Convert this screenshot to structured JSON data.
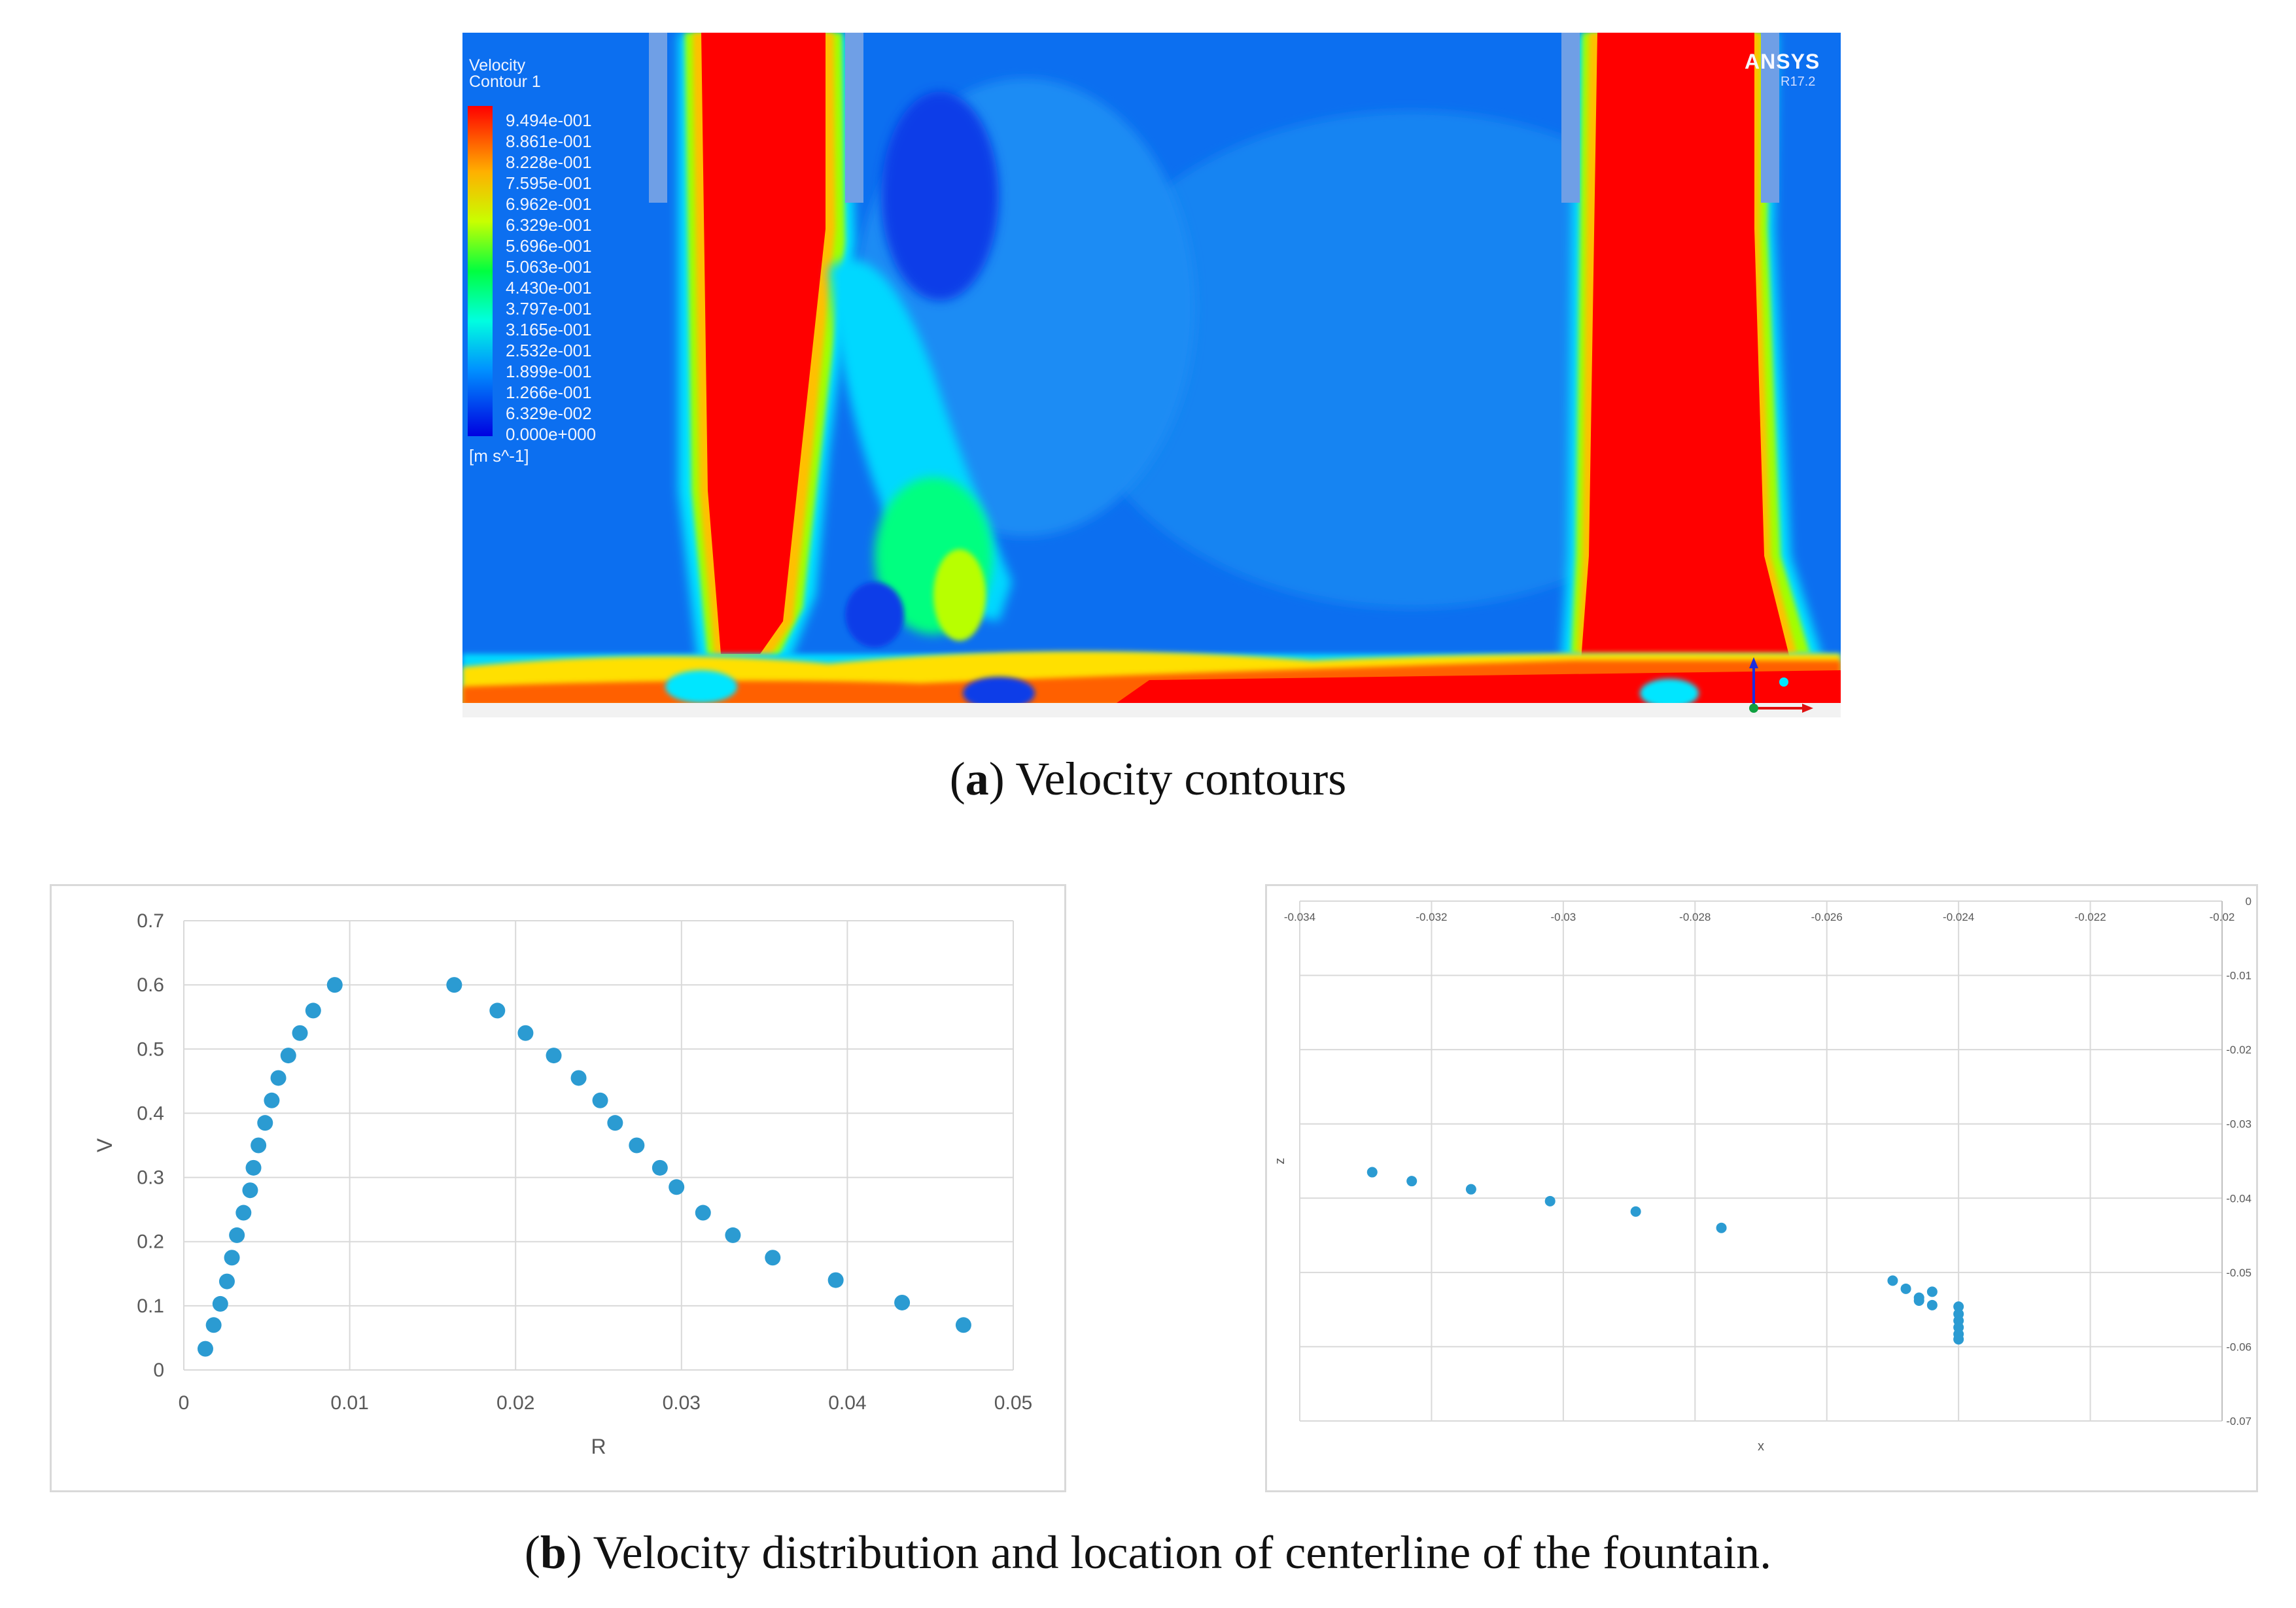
{
  "figure": {
    "caption_a": {
      "letter": "a",
      "text": "Velocity contours"
    },
    "caption_b": {
      "letter": "b",
      "text": "Velocity distribution and location of centerline of the fountain."
    }
  },
  "contour": {
    "legend_title_1": "Velocity",
    "legend_title_2": "Contour 1",
    "legend_values": [
      "9.494e-001",
      "8.861e-001",
      "8.228e-001",
      "7.595e-001",
      "6.962e-001",
      "6.329e-001",
      "5.696e-001",
      "5.063e-001",
      "4.430e-001",
      "3.797e-001",
      "3.165e-001",
      "2.532e-001",
      "1.899e-001",
      "1.266e-001",
      "6.329e-002",
      "0.000e+000"
    ],
    "legend_colors": [
      "#ff0000",
      "#ff5a00",
      "#ffa800",
      "#ffe000",
      "#d8ff00",
      "#8cff00",
      "#30ff00",
      "#00ff60",
      "#00ffb0",
      "#00ffee",
      "#00d8ff",
      "#00a8ff",
      "#0078ff",
      "#0048ff",
      "#0018ff",
      "#0000e0"
    ],
    "units": "[m s^-1]",
    "brand": "ANSYS",
    "version": "R17.2",
    "colors": {
      "background": "#0a6cf0",
      "hot": "#ff0000",
      "nozzle": "#6f9fe6"
    }
  },
  "chart_data": [
    {
      "type": "scatter",
      "title": "",
      "xlabel": "R",
      "ylabel": "V",
      "xlim": [
        0,
        0.05
      ],
      "ylim": [
        0,
        0.7
      ],
      "xticks": [
        0,
        0.01,
        0.02,
        0.03,
        0.04,
        0.05
      ],
      "xtick_labels": [
        "0",
        "0.01",
        "0.02",
        "0.03",
        "0.04",
        "0.05"
      ],
      "yticks": [
        0,
        0.1,
        0.2,
        0.3,
        0.4,
        0.5,
        0.6,
        0.7
      ],
      "ytick_labels": [
        "0",
        "0.1",
        "0.2",
        "0.3",
        "0.4",
        "0.5",
        "0.6",
        "0.7"
      ],
      "grid": true,
      "marker_color": "#2b9bd2",
      "points": [
        [
          0.0013,
          0.033
        ],
        [
          0.0018,
          0.07
        ],
        [
          0.0022,
          0.103
        ],
        [
          0.0026,
          0.138
        ],
        [
          0.0029,
          0.175
        ],
        [
          0.0032,
          0.21
        ],
        [
          0.0036,
          0.245
        ],
        [
          0.004,
          0.28
        ],
        [
          0.0042,
          0.315
        ],
        [
          0.0045,
          0.35
        ],
        [
          0.0049,
          0.385
        ],
        [
          0.0053,
          0.42
        ],
        [
          0.0057,
          0.455
        ],
        [
          0.0063,
          0.49
        ],
        [
          0.007,
          0.525
        ],
        [
          0.0078,
          0.56
        ],
        [
          0.0091,
          0.6
        ],
        [
          0.0163,
          0.6
        ],
        [
          0.0189,
          0.56
        ],
        [
          0.0206,
          0.525
        ],
        [
          0.0223,
          0.49
        ],
        [
          0.0238,
          0.455
        ],
        [
          0.0251,
          0.42
        ],
        [
          0.026,
          0.385
        ],
        [
          0.0273,
          0.35
        ],
        [
          0.0287,
          0.315
        ],
        [
          0.0297,
          0.285
        ],
        [
          0.0313,
          0.245
        ],
        [
          0.0331,
          0.21
        ],
        [
          0.0355,
          0.175
        ],
        [
          0.0393,
          0.14
        ],
        [
          0.0433,
          0.105
        ],
        [
          0.047,
          0.07
        ]
      ]
    },
    {
      "type": "scatter",
      "title": "",
      "xlabel": "x",
      "ylabel": "z",
      "xlim": [
        -0.034,
        -0.02
      ],
      "ylim": [
        -0.07,
        0
      ],
      "xticks": [
        -0.034,
        -0.032,
        -0.03,
        -0.028,
        -0.026,
        -0.024,
        -0.022,
        -0.02
      ],
      "xtick_labels": [
        "-0.034",
        "-0.032",
        "-0.03",
        "-0.028",
        "-0.026",
        "-0.024",
        "-0.022",
        "-0.02"
      ],
      "yticks": [
        0,
        -0.01,
        -0.02,
        -0.03,
        -0.04,
        -0.05,
        -0.06,
        -0.07
      ],
      "ytick_labels": [
        "0",
        "-0.01",
        "-0.02",
        "-0.03",
        "-0.04",
        "-0.05",
        "-0.06",
        "-0.07"
      ],
      "grid": true,
      "marker_color": "#2b9bd2",
      "points": [
        [
          -0.0329,
          -0.0365
        ],
        [
          -0.0323,
          -0.0377
        ],
        [
          -0.0314,
          -0.0388
        ],
        [
          -0.0302,
          -0.0404
        ],
        [
          -0.0289,
          -0.0418
        ],
        [
          -0.0276,
          -0.044
        ],
        [
          -0.025,
          -0.0511
        ],
        [
          -0.0248,
          -0.0522
        ],
        [
          -0.0246,
          -0.0534
        ],
        [
          -0.0246,
          -0.0538
        ],
        [
          -0.0244,
          -0.0526
        ],
        [
          -0.0244,
          -0.0544
        ],
        [
          -0.024,
          -0.0546
        ],
        [
          -0.024,
          -0.0556
        ],
        [
          -0.024,
          -0.0565
        ],
        [
          -0.024,
          -0.0574
        ],
        [
          -0.024,
          -0.0583
        ],
        [
          -0.024,
          -0.059
        ]
      ]
    }
  ]
}
